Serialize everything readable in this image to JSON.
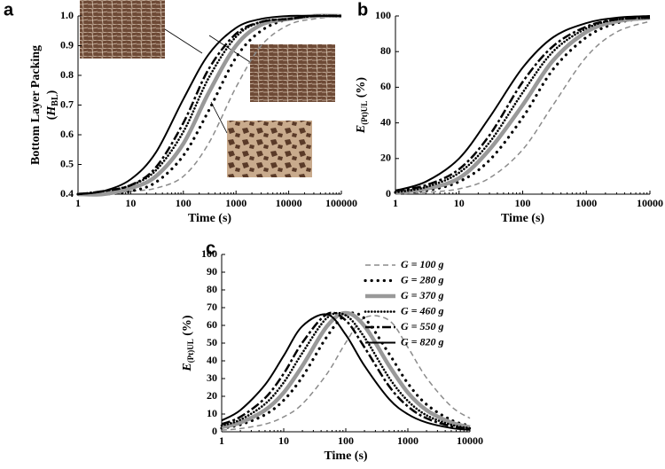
{
  "chart_data": [
    {
      "type": "line",
      "label": "a",
      "xscale": "log",
      "xlabel": "Time (s)",
      "ylabel": [
        "Bottom Layer Packing",
        "(",
        "H",
        "BL",
        ")"
      ],
      "xlim": [
        1,
        100000
      ],
      "xticks": [
        1,
        10,
        100,
        1000,
        10000,
        100000
      ],
      "ylim": [
        0.4,
        1.0
      ],
      "yticks": [
        0.4,
        0.5,
        0.6,
        0.7,
        0.8,
        0.9,
        {
          "value": 1.0,
          "label": "1.0"
        }
      ],
      "x": [
        1,
        3,
        10,
        30,
        100,
        300,
        1000,
        3000,
        10000,
        30000,
        100000
      ],
      "series": [
        {
          "name": "G = 100 g",
          "color": "#8c8c8c",
          "dash": "6,4",
          "width": 1.5,
          "values": [
            0.4,
            0.4,
            0.41,
            0.42,
            0.46,
            0.57,
            0.76,
            0.9,
            0.97,
            0.99,
            1.0
          ]
        },
        {
          "name": "G = 280 g",
          "color": "#000000",
          "dash": "0.1,7",
          "width": 3.2,
          "values": [
            0.4,
            0.4,
            0.41,
            0.44,
            0.53,
            0.68,
            0.86,
            0.95,
            0.99,
            1.0,
            1.0
          ]
        },
        {
          "name": "G = 370 g",
          "color": "#999999",
          "dash": "",
          "width": 4.5,
          "values": [
            0.4,
            0.4,
            0.42,
            0.46,
            0.57,
            0.74,
            0.9,
            0.97,
            0.99,
            1.0,
            1.0
          ]
        },
        {
          "name": "G = 460 g",
          "color": "#000000",
          "dash": "0.1,3.5",
          "width": 2.6,
          "values": [
            0.4,
            0.41,
            0.43,
            0.48,
            0.61,
            0.79,
            0.93,
            0.98,
            0.99,
            1.0,
            1.0
          ]
        },
        {
          "name": "G = 550 g",
          "color": "#000000",
          "dash": "10,3,3,3",
          "width": 2.5,
          "values": [
            0.4,
            0.41,
            0.43,
            0.49,
            0.64,
            0.82,
            0.94,
            0.98,
            0.99,
            1.0,
            1.0
          ]
        },
        {
          "name": "G = 820 g",
          "color": "#000000",
          "dash": "",
          "width": 2,
          "values": [
            0.4,
            0.41,
            0.45,
            0.54,
            0.72,
            0.87,
            0.96,
            0.99,
            1.0,
            1.0,
            1.0
          ]
        }
      ]
    },
    {
      "type": "line",
      "label": "b",
      "xscale": "log",
      "xlabel": "Time (s)",
      "ylabel": [
        "E",
        "(Pt)UL",
        " (%)"
      ],
      "xlim": [
        1,
        10000
      ],
      "xticks": [
        1,
        10,
        100,
        1000,
        10000
      ],
      "ylim": [
        0,
        100
      ],
      "yticks": [
        0,
        20,
        40,
        60,
        80,
        100
      ],
      "x": [
        1,
        3,
        10,
        30,
        100,
        300,
        1000,
        3000,
        10000
      ],
      "series": [
        {
          "name": "G = 100 g",
          "color": "#8c8c8c",
          "dash": "6,4",
          "width": 1.5,
          "values": [
            0,
            1,
            3,
            9,
            25,
            50,
            77,
            91,
            97
          ]
        },
        {
          "name": "G = 280 g",
          "color": "#000000",
          "dash": "0.1,7",
          "width": 3.2,
          "values": [
            1,
            2,
            7,
            19,
            43,
            70,
            88,
            96,
            99
          ]
        },
        {
          "name": "G = 370 g",
          "color": "#999999",
          "dash": "",
          "width": 4.5,
          "values": [
            1,
            3,
            9,
            25,
            50,
            75,
            91,
            97,
            99
          ]
        },
        {
          "name": "G = 460 g",
          "color": "#000000",
          "dash": "0.1,3.5",
          "width": 2.6,
          "values": [
            1,
            4,
            12,
            29,
            57,
            80,
            93,
            98,
            99
          ]
        },
        {
          "name": "G = 550 g",
          "color": "#000000",
          "dash": "10,3,3,3",
          "width": 2.5,
          "values": [
            2,
            5,
            14,
            33,
            63,
            83,
            94,
            98,
            99
          ]
        },
        {
          "name": "G = 820 g",
          "color": "#000000",
          "dash": "",
          "width": 2,
          "values": [
            2,
            7,
            20,
            43,
            71,
            88,
            96,
            99,
            100
          ]
        }
      ]
    },
    {
      "type": "line",
      "label": "c",
      "xscale": "log",
      "xlabel": "Time (s)",
      "ylabel": [
        "E",
        "(Pt)UL",
        " (%)"
      ],
      "legend": "upper right",
      "xlim": [
        1,
        10000
      ],
      "xticks": [
        1,
        10,
        100,
        1000,
        10000
      ],
      "ylim": [
        0,
        100
      ],
      "yticks": [
        0,
        10,
        20,
        30,
        40,
        50,
        60,
        70,
        80,
        90,
        100
      ],
      "x": [
        1,
        2,
        5,
        10,
        20,
        50,
        100,
        200,
        500,
        1000,
        2000,
        5000,
        10000
      ],
      "series": [
        {
          "name": "G = 100 g",
          "color": "#8c8c8c",
          "dash": "6,4",
          "width": 1.5,
          "values": [
            0.9,
            1.8,
            4.3,
            8.4,
            15.7,
            32.8,
            50.3,
            64.3,
            62.8,
            47.6,
            30.4,
            14.3,
            7.6
          ]
        },
        {
          "name": "G = 280 g",
          "color": "#000000",
          "dash": "0.1,7",
          "width": 3.2,
          "values": [
            2.0,
            4.0,
            9.6,
            17.8,
            31.0,
            53.8,
            65.9,
            64.0,
            43.9,
            27.3,
            15.4,
            6.6,
            3.4
          ]
        },
        {
          "name": "G = 370 g",
          "color": "#999999",
          "dash": "",
          "width": 4.5,
          "values": [
            2.6,
            5.2,
            12.2,
            22.1,
            37.2,
            59.6,
            67.0,
            59.6,
            37.2,
            22.1,
            12.2,
            5.2,
            2.6
          ]
        },
        {
          "name": "G = 460 g",
          "color": "#000000",
          "dash": "0.1,3.5",
          "width": 2.6,
          "values": [
            3.5,
            6.8,
            15.7,
            27.8,
            44.5,
            64.3,
            65.6,
            53.2,
            30.4,
            17.4,
            9.3,
            3.9,
            2.0
          ]
        },
        {
          "name": "G = 550 g",
          "color": "#000000",
          "dash": "10,3,3,3",
          "width": 2.5,
          "values": [
            4.3,
            8.4,
            19.0,
            32.8,
            50.3,
            66.4,
            62.8,
            47.6,
            25.6,
            14.3,
            7.6,
            3.1,
            1.6
          ]
        },
        {
          "name": "G = 820 g",
          "color": "#000000",
          "dash": "",
          "width": 2,
          "values": [
            6.4,
            12.2,
            26.5,
            42.9,
            59.6,
            66.2,
            54.7,
            37.2,
            18.4,
            9.9,
            5.2,
            2.1,
            1.1
          ]
        }
      ]
    }
  ]
}
